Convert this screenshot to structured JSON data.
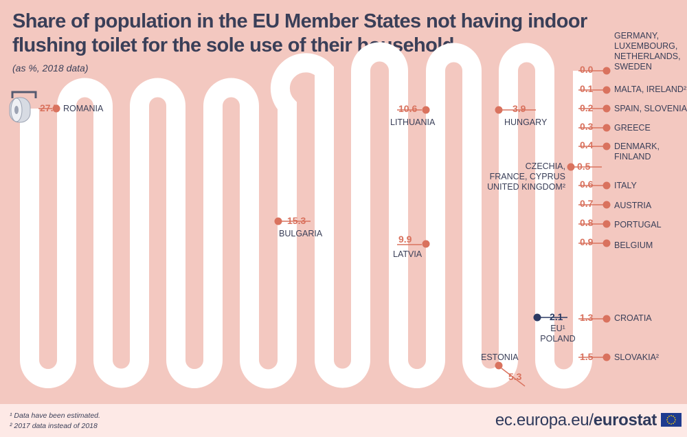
{
  "title": "Share of population in the EU Member States not having indoor flushing toilet for the sole use of their household",
  "subtitle": "(as %, 2018 data)",
  "footnotes": [
    "¹  Data have been estimated.",
    "² 2017 data instead of 2018"
  ],
  "brand": {
    "url": "ec.europa.eu/",
    "name": "eurostat"
  },
  "colors": {
    "background": "#f3c8c0",
    "path": "#ffffff",
    "marker": "#d9725e",
    "eu_marker": "#2b3a63",
    "text": "#3a3f58"
  },
  "icons": [
    "toilet-paper-icon",
    "eu-flag-icon"
  ],
  "chart_data": {
    "type": "scatter",
    "ylim": [
      0,
      27.7
    ],
    "points": [
      {
        "value": "27.7",
        "label": "ROMANIA",
        "x": 0.0
      },
      {
        "value": "15.3",
        "label": "BULGARIA",
        "x": 0.0
      },
      {
        "value": "10.6",
        "label": "LITHUANIA",
        "x": 0.0
      },
      {
        "value": "9.9",
        "label": "LATVIA",
        "x": 0.0
      },
      {
        "value": "5.3",
        "label": "ESTONIA",
        "x": 0.0
      },
      {
        "value": "3.9",
        "label": "HUNGARY",
        "x": 0.0
      },
      {
        "value": "2.1",
        "label": "EU¹\nPOLAND",
        "x": 0.0
      },
      {
        "value": "1.5",
        "label": "SLOVAKIA²",
        "x": 0.0
      },
      {
        "value": "1.3",
        "label": "CROATIA",
        "x": 0.0
      },
      {
        "value": "0.9",
        "label": "BELGIUM",
        "x": 0.0
      },
      {
        "value": "0.8",
        "label": "PORTUGAL",
        "x": 0.0
      },
      {
        "value": "0.7",
        "label": "AUSTRIA",
        "x": 0.0
      },
      {
        "value": "0.6",
        "label": "ITALY",
        "x": 0.0
      },
      {
        "value": "0.5",
        "label": "CZECHIA,\nFRANCE, CYPRUS\nUNITED KINGDOM²",
        "x": 0.0
      },
      {
        "value": "0.4",
        "label": "DENMARK,\nFINLAND",
        "x": 0.0
      },
      {
        "value": "0.3",
        "label": "GREECE",
        "x": 0.0
      },
      {
        "value": "0.2",
        "label": "SPAIN, SLOVENIA",
        "x": 0.0
      },
      {
        "value": "0.1",
        "label": "MALTA, IRELAND²",
        "x": 0.0
      },
      {
        "value": "0.0",
        "label": "GERMANY,\nLUXEMBOURG,\nNETHERLANDS,\nSWEDEN",
        "x": 0.0
      }
    ]
  }
}
